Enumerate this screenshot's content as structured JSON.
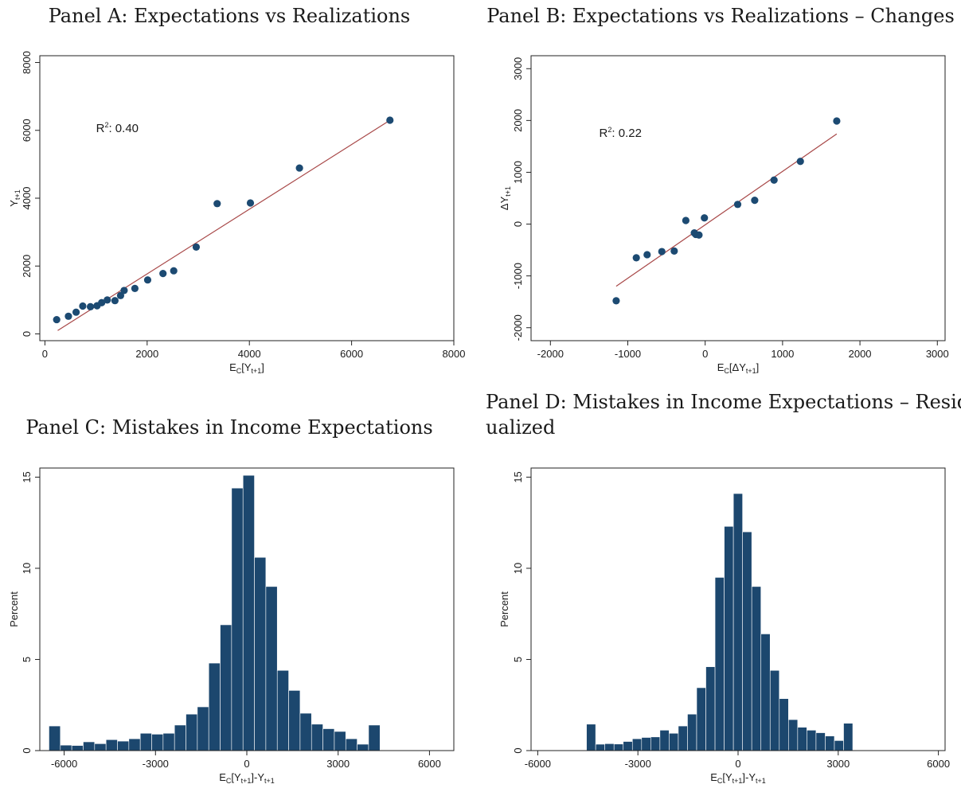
{
  "colors": {
    "marker": "#1c4a72",
    "fit_line": "#a84848",
    "bar": "#1c476e",
    "frame": "#222222"
  },
  "chart_data": [
    {
      "id": "A",
      "type": "scatter",
      "title": "Panel A: Expectations vs Realizations",
      "xlabel": {
        "main": "E",
        "sub1": "C",
        "mid": "[Y",
        "sub2": "t+1",
        "end": "]"
      },
      "ylabel": {
        "main": "Y",
        "sub": "t+1"
      },
      "xlim": [
        -100,
        8000
      ],
      "ylim": [
        -200,
        8200
      ],
      "xticks": [
        0,
        2000,
        4000,
        6000,
        8000
      ],
      "yticks": [
        0,
        2000,
        4000,
        6000,
        8000
      ],
      "annotation": {
        "text": "R",
        "sup": "2",
        "rest": ": 0.40",
        "at": [
          1000,
          5950
        ]
      },
      "points": [
        [
          230,
          420
        ],
        [
          460,
          520
        ],
        [
          610,
          640
        ],
        [
          740,
          820
        ],
        [
          890,
          800
        ],
        [
          1020,
          830
        ],
        [
          1110,
          920
        ],
        [
          1220,
          1000
        ],
        [
          1370,
          980
        ],
        [
          1480,
          1130
        ],
        [
          1550,
          1280
        ],
        [
          1760,
          1340
        ],
        [
          2010,
          1590
        ],
        [
          2310,
          1780
        ],
        [
          2520,
          1860
        ],
        [
          2960,
          2560
        ],
        [
          3370,
          3840
        ],
        [
          4020,
          3860
        ],
        [
          4980,
          4890
        ],
        [
          6750,
          6300
        ]
      ],
      "fit": [
        [
          250,
          100
        ],
        [
          6700,
          6250
        ]
      ]
    },
    {
      "id": "B",
      "type": "scatter",
      "title": "Panel B: Expectations vs Realizations – Changes",
      "xlabel": {
        "main": "E",
        "sub1": "C",
        "mid": "[ΔY",
        "sub2": "t+1",
        "end": "]"
      },
      "ylabel": {
        "main": "ΔY",
        "sub": "t+1"
      },
      "xlim": [
        -2250,
        3100
      ],
      "ylim": [
        -2250,
        3250
      ],
      "xticks": [
        -2000,
        -1000,
        0,
        1000,
        2000,
        3000
      ],
      "yticks": [
        -2000,
        -1000,
        0,
        1000,
        2000,
        3000
      ],
      "annotation": {
        "text": "R",
        "sup": "2",
        "rest": ": 0.22",
        "at": [
          -1370,
          1680
        ]
      },
      "points": [
        [
          -1150,
          -1480
        ],
        [
          -890,
          -650
        ],
        [
          -750,
          -590
        ],
        [
          -560,
          -530
        ],
        [
          -400,
          -520
        ],
        [
          -250,
          70
        ],
        [
          -140,
          -170
        ],
        [
          -120,
          -200
        ],
        [
          -80,
          -210
        ],
        [
          -10,
          120
        ],
        [
          420,
          380
        ],
        [
          640,
          460
        ],
        [
          890,
          850
        ],
        [
          1230,
          1210
        ],
        [
          1700,
          1990
        ]
      ],
      "fit": [
        [
          -1150,
          -1200
        ],
        [
          1700,
          1740
        ]
      ]
    },
    {
      "id": "C",
      "type": "bar",
      "title": "Panel C: Mistakes in Income Expectations",
      "xlabel": {
        "main": "E",
        "sub1": "C",
        "mid": "[Y",
        "sub2": "t+1",
        "end": "]-Y",
        "sub3": "t+1"
      },
      "ylabel": "Percent",
      "xlim": [
        -6800,
        6800
      ],
      "ylim": [
        0,
        15.5
      ],
      "xticks": [
        -6000,
        -3000,
        0,
        3000,
        6000
      ],
      "yticks": [
        0,
        5,
        10,
        15
      ],
      "bin_start": -6500,
      "bin_width": 375,
      "values": [
        1.35,
        0.3,
        0.28,
        0.48,
        0.38,
        0.6,
        0.52,
        0.65,
        0.95,
        0.9,
        0.95,
        1.4,
        2.0,
        2.4,
        4.8,
        6.9,
        14.4,
        15.1,
        10.6,
        9.0,
        4.4,
        3.3,
        2.05,
        1.45,
        1.2,
        1.05,
        0.65,
        0.35,
        1.4
      ]
    },
    {
      "id": "D",
      "type": "bar",
      "title": "Panel D: Mistakes in Income Expectations – Resid-",
      "title_line2": "ualized",
      "xlabel": {
        "main": "E",
        "sub1": "C",
        "mid": "[Y",
        "sub2": "t+1",
        "end": "]-Y",
        "sub3": "t+1"
      },
      "ylabel": "Percent",
      "xlim": [
        -6200,
        6200
      ],
      "ylim": [
        0,
        15.5
      ],
      "xticks": [
        -6000,
        -3000,
        0,
        3000,
        6000
      ],
      "yticks": [
        0,
        5,
        10,
        15
      ],
      "bin_start": -4540,
      "bin_width": 275,
      "values": [
        1.45,
        0.35,
        0.38,
        0.36,
        0.5,
        0.65,
        0.72,
        0.75,
        1.12,
        0.95,
        1.35,
        2.0,
        3.45,
        4.6,
        9.5,
        12.3,
        14.1,
        12.0,
        9.0,
        6.4,
        4.4,
        2.85,
        1.7,
        1.28,
        1.12,
        0.98,
        0.8,
        0.55,
        1.5
      ]
    }
  ]
}
